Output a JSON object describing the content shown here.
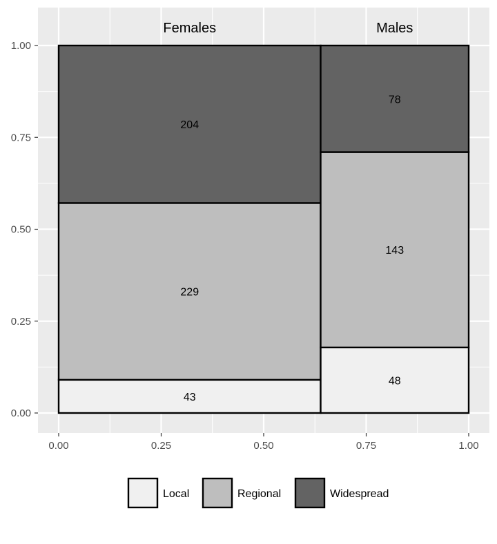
{
  "chart_data": {
    "type": "mosaic",
    "groups": [
      {
        "name": "Females",
        "counts": {
          "Local": 43,
          "Regional": 229,
          "Widespread": 204
        }
      },
      {
        "name": "Males",
        "counts": {
          "Local": 48,
          "Regional": 143,
          "Widespread": 78
        }
      }
    ],
    "categories": [
      "Local",
      "Regional",
      "Widespread"
    ],
    "x_ticks": [
      "0.00",
      "0.25",
      "0.50",
      "0.75",
      "1.00"
    ],
    "y_ticks": [
      "0.00",
      "0.25",
      "0.50",
      "0.75",
      "1.00"
    ],
    "xlim": [
      0,
      1
    ],
    "ylim": [
      0,
      1
    ],
    "grid": true,
    "legend_position": "bottom",
    "colors": {
      "Local": "#f0f0f0",
      "Regional": "#bebebe",
      "Widespread": "#636363",
      "panel": "#ebebeb",
      "grid": "#ffffff"
    }
  }
}
